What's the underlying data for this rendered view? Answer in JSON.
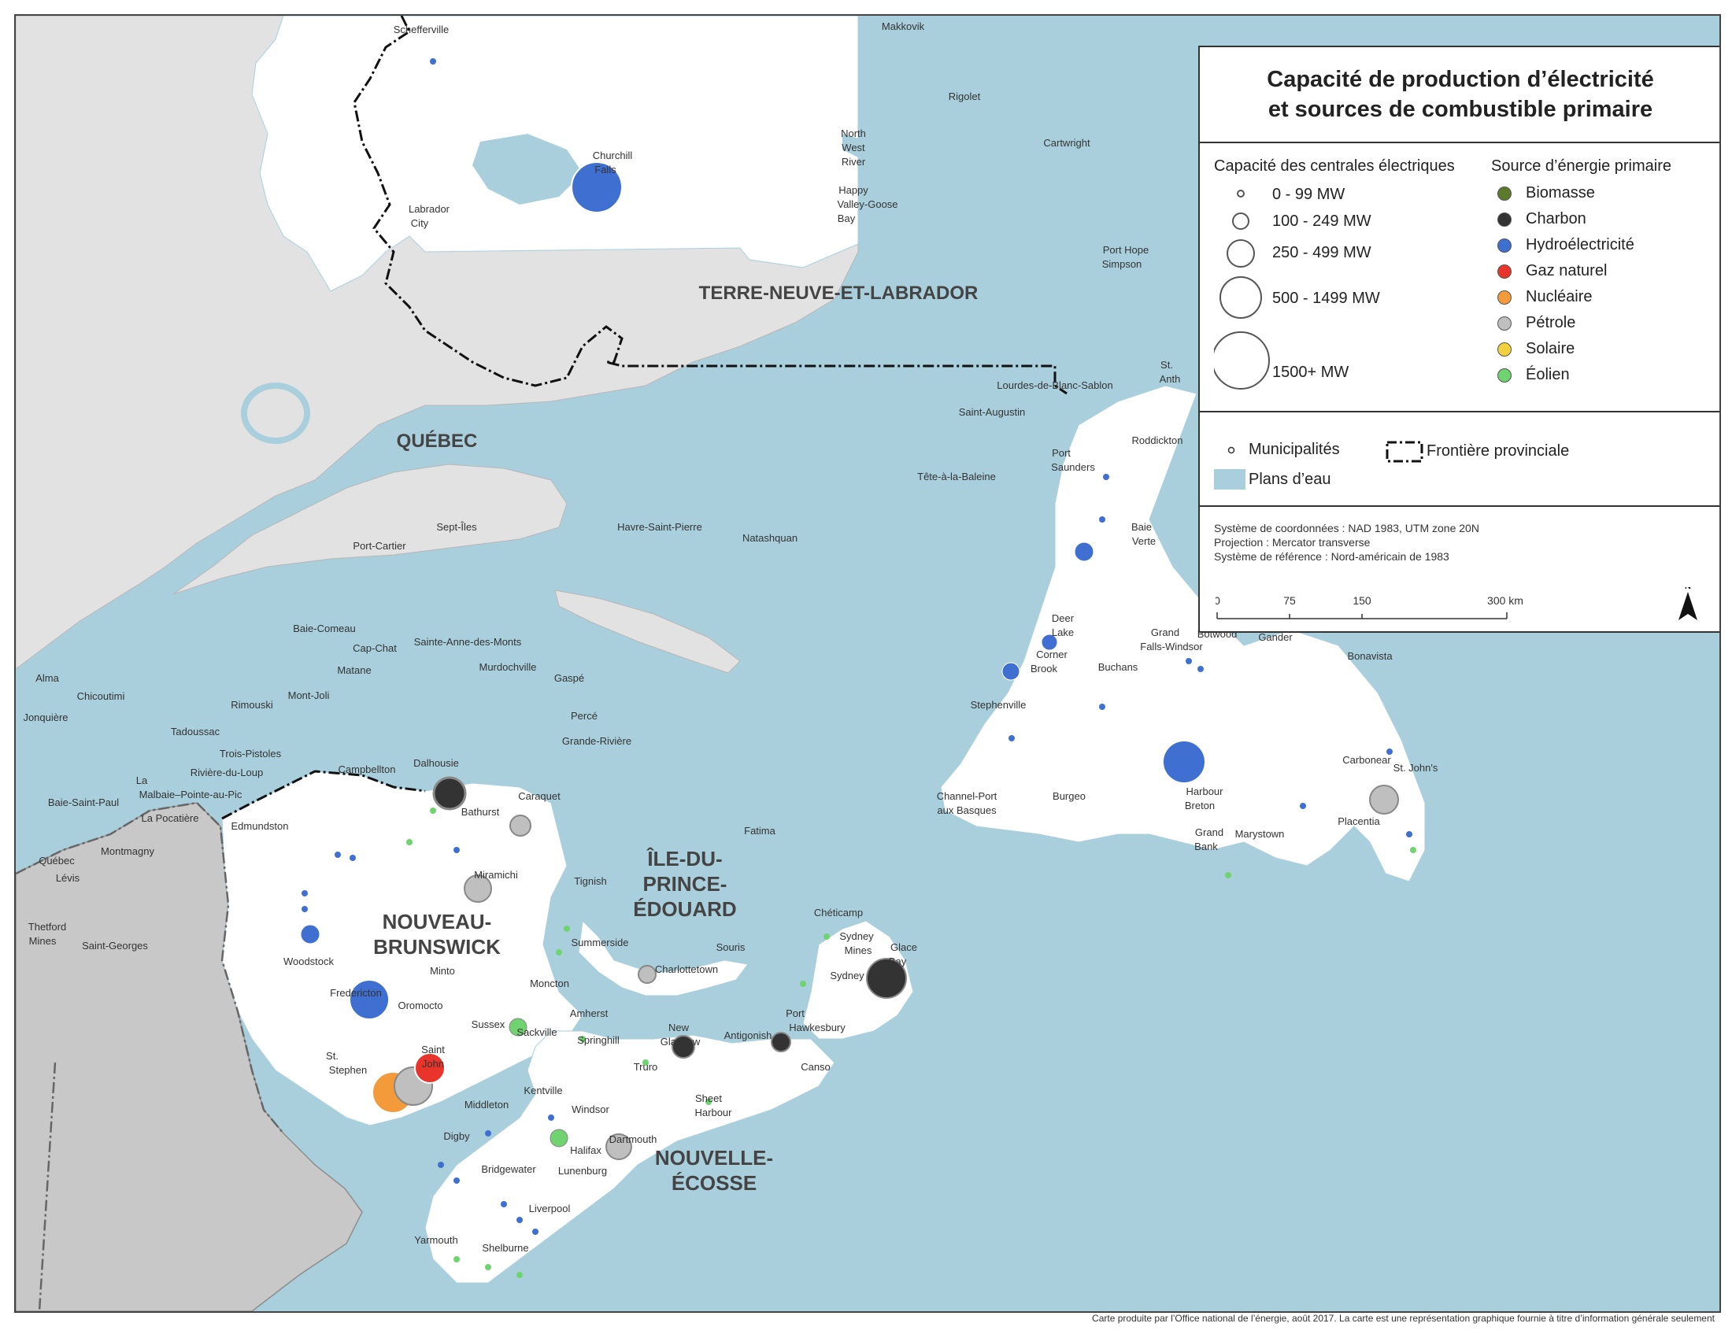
{
  "legend": {
    "title_line1": "Capacité de production d’électricité",
    "title_line2": "et sources de combustible primaire",
    "capacity_heading": "Capacité des centrales électriques",
    "capacity_classes": [
      "0 - 99 MW",
      "100 - 249 MW",
      "250 - 499 MW",
      "500 - 1499 MW",
      "1500+ MW"
    ],
    "source_heading": "Source d’énergie primaire",
    "sources": [
      {
        "label": "Biomasse",
        "color": "#5b7a2c"
      },
      {
        "label": "Charbon",
        "color": "#333333"
      },
      {
        "label": "Hydroélectricité",
        "color": "#3e6fd1"
      },
      {
        "label": "Gaz naturel",
        "color": "#e8342a"
      },
      {
        "label": "Nucléaire",
        "color": "#f39a3a"
      },
      {
        "label": "Pétrole",
        "color": "#bfbfbf"
      },
      {
        "label": "Solaire",
        "color": "#f2d13e"
      },
      {
        "label": "Éolien",
        "color": "#6fd36f"
      }
    ],
    "municipalities_label": "Municipalités",
    "border_label": "Frontière provinciale",
    "water_label": "Plans d’eau",
    "ref_lines": [
      "Système de coordonnées : NAD 1983, UTM zone 20N",
      "Projection : Mercator transverse",
      "Système de référence : Nord-américain de 1983"
    ],
    "scale_ticks": [
      "0",
      "75",
      "150",
      "300 km"
    ],
    "north_label": "N"
  },
  "provinces": {
    "nl": "TERRE-NEUVE-ET-LABRADOR",
    "qc": "QUÉBEC",
    "nb_line1": "NOUVEAU-",
    "nb_line2": "BRUNSWICK",
    "pe_line1": "ÎLE-DU-",
    "pe_line2": "PRINCE-",
    "pe_line3": "ÉDOUARD",
    "ns_line1": "NOUVELLE-",
    "ns_line2": "ÉCOSSE"
  },
  "towns": {
    "schefferville": "Schefferville",
    "makkovik": "Makkovik",
    "rigolet": "Rigolet",
    "churchill_1": "Churchill",
    "churchill_2": "Falls",
    "nwr_1": "North",
    "nwr_2": "West",
    "nwr_3": "River",
    "hvgb_1": "Happy",
    "hvgb_2": "Valley-Goose",
    "hvgb_3": "Bay",
    "cartwright": "Cartwright",
    "labcity_1": "Labrador",
    "labcity_2": "City",
    "porthope_1": "Port Hope",
    "porthope_2": "Simpson",
    "lourdes": "Lourdes-de-Blanc-Sablon",
    "stanth_1": "St.",
    "stanth_2": "Anth",
    "staugustin": "Saint-Augustin",
    "roddickton": "Roddickton",
    "portsaunders_1": "Port",
    "portsaunders_2": "Saunders",
    "tetealabaleine": "Tête-à-la-Baleine",
    "sepitles": "Sept-Îles",
    "portcartier": "Port-Cartier",
    "havre": "Havre-Saint-Pierre",
    "natashquan": "Natashquan",
    "baieverte_1": "Baie",
    "baieverte_2": "Verte",
    "baiecomeau": "Baie-Comeau",
    "capchat": "Cap-Chat",
    "stannedesmonts": "Sainte-Anne-des-Monts",
    "murdochville": "Murdochville",
    "gaspe": "Gaspé",
    "matane": "Matane",
    "alma": "Alma",
    "chicoutimi": "Chicoutimi",
    "jonquiere": "Jonquière",
    "rimouski": "Rimouski",
    "montjoli": "Mont-Joli",
    "perce": "Percé",
    "granderiviere": "Grande-Rivière",
    "tadoussac": "Tadoussac",
    "troispistoles": "Trois-Pistoles",
    "campbellton": "Campbellton",
    "dalhousie": "Dalhousie",
    "riviereduloup": "Rivière-du-Loup",
    "lamalbaie_1": "La",
    "lamalbaie_2": "Malbaie–Pointe-au-Pic",
    "baiestpaul": "Baie-Saint-Paul",
    "lapocatiere": "La Pocatière",
    "edmundston": "Edmundston",
    "caraquet": "Caraquet",
    "bathurst": "Bathurst",
    "fatima": "Fatima",
    "quebec": "Québec",
    "montmagny": "Montmagny",
    "levis": "Lévis",
    "miramichi": "Miramichi",
    "tignish": "Tignish",
    "thetford_1": "Thetford",
    "thetford_2": "Mines",
    "stgeorges": "Saint-Georges",
    "woodstock": "Woodstock",
    "summerside": "Summerside",
    "cheticamp": "Chéticamp",
    "sydneymines_1": "Sydney",
    "sydneymines_2": "Mines",
    "glacebay_1": "Glace",
    "glacebay_2": "Bay",
    "sydney": "Sydney",
    "souris": "Souris",
    "charlottetown": "Charlottetown",
    "minto": "Minto",
    "moncton": "Moncton",
    "fredericton": "Fredericton",
    "oromocto": "Oromocto",
    "amherst": "Amherst",
    "sussex": "Sussex",
    "sackville": "Sackville",
    "springhill": "Springhill",
    "newglasgow_1": "New",
    "newglasgow_2": "Glasgow",
    "antigonish": "Antigonish",
    "porthawk_1": "Port",
    "porthawk_2": "Hawkesbury",
    "stjohn_1": "Saint",
    "stjohn_2": "John",
    "ststephen_1": "St.",
    "ststephen_2": "Stephen",
    "truro": "Truro",
    "canso": "Canso",
    "middleton": "Middleton",
    "kentville": "Kentville",
    "windsor": "Windsor",
    "sheet_1": "Sheet",
    "sheet_2": "Harbour",
    "digby": "Digby",
    "dartmouth": "Dartmouth",
    "halifax": "Halifax",
    "bridgewater": "Bridgewater",
    "lunenburg": "Lunenburg",
    "liverpool": "Liverpool",
    "yarmouth": "Yarmouth",
    "shelburne": "Shelburne",
    "deerlake_1": "Deer",
    "deerlake_2": "Lake",
    "grandfalls_1": "Grand",
    "grandfalls_2": "Falls-Windsor",
    "botwood": "Botwood",
    "gander": "Gander",
    "cornerbrook_1": "Corner",
    "cornerbrook_2": "Brook",
    "buchans": "Buchans",
    "bonavista": "Bonavista",
    "stephenville": "Stephenville",
    "channel_1": "Channel-Port",
    "channel_2": "aux Basques",
    "burgeo": "Burgeo",
    "carbonear": "Carbonear",
    "stjohns": "St. John's",
    "harbourbreton_1": "Harbour",
    "harbourbreton_2": "Breton",
    "placentia": "Placentia",
    "grandbank_1": "Grand",
    "grandbank_2": "Bank",
    "marystown": "Marystown"
  },
  "footer": "Carte produite par l’Office national de l’énergie, août 2017. La carte est une représentation graphique fournie à titre d’information générale seulement"
}
